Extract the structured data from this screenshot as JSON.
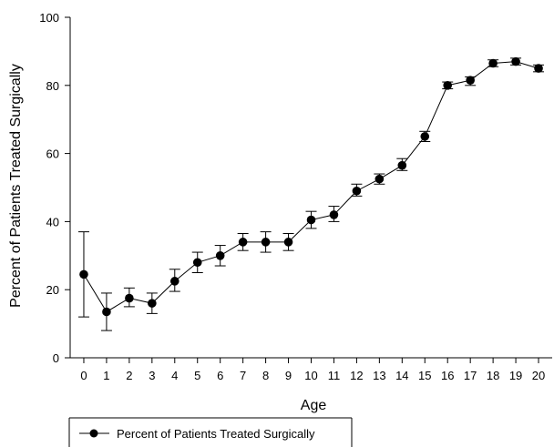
{
  "chart_data": {
    "type": "line",
    "title": "",
    "xlabel": "Age",
    "ylabel": "Percent of Patients Treated Surgically",
    "x": [
      0,
      1,
      2,
      3,
      4,
      5,
      6,
      7,
      8,
      9,
      10,
      11,
      12,
      13,
      14,
      15,
      16,
      17,
      18,
      19,
      20
    ],
    "xlim": [
      -0.6,
      20.6
    ],
    "ylim": [
      0,
      100
    ],
    "yticks": [
      0,
      20,
      40,
      60,
      80,
      100
    ],
    "grid": false,
    "legend_position": "bottom-left",
    "series": [
      {
        "name": "Percent of Patients Treated Surgically",
        "color": "#000000",
        "marker": "filled-circle",
        "values": [
          24.5,
          13.5,
          17.5,
          16.0,
          22.5,
          28.0,
          30.0,
          34.0,
          34.0,
          34.0,
          40.5,
          42.0,
          49.0,
          52.5,
          56.5,
          65.0,
          80.0,
          81.5,
          86.5,
          87.0,
          85.0
        ],
        "error_low": [
          12.0,
          8.0,
          15.0,
          13.0,
          19.5,
          25.0,
          27.0,
          31.5,
          31.0,
          31.5,
          38.0,
          40.0,
          47.5,
          51.0,
          55.0,
          63.5,
          79.0,
          80.0,
          85.5,
          86.0,
          84.0
        ],
        "error_high": [
          37.0,
          19.0,
          20.5,
          19.0,
          26.0,
          31.0,
          33.0,
          36.5,
          37.0,
          36.5,
          43.0,
          44.5,
          51.0,
          54.0,
          58.5,
          66.5,
          81.0,
          82.5,
          87.5,
          88.0,
          86.0
        ]
      }
    ]
  }
}
